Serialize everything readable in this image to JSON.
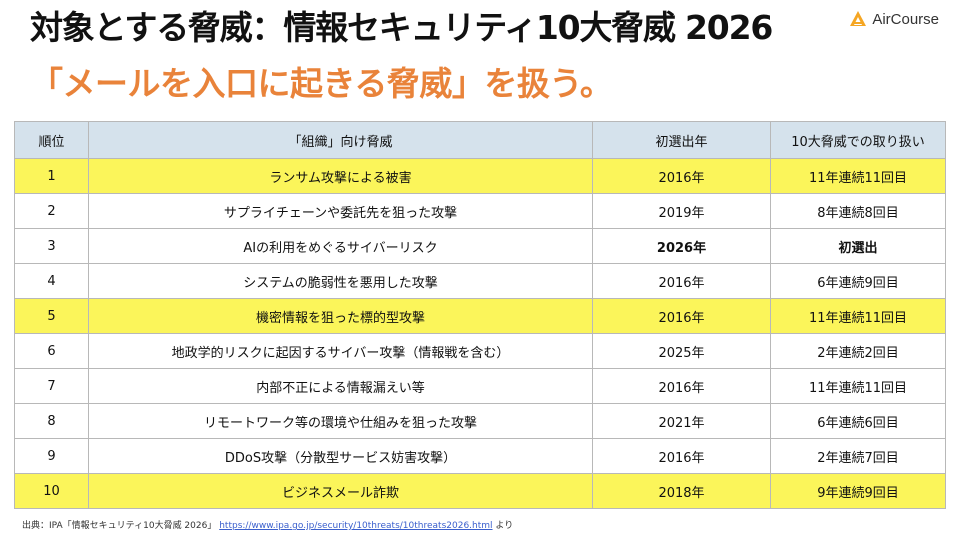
{
  "slide": {
    "title": "対象とする脅威：情報セキュリティ10大脅威 2026",
    "subtitle": "「メールを入口に起きる脅威」を扱う。",
    "logo_text": "AirCourse",
    "brand_color": "#f5a623",
    "accent_color": "#e9833a",
    "highlight_color": "#fbf55a",
    "header_color": "#d5e2ec"
  },
  "table": {
    "headers": [
      "順位",
      "「組織」向け脅威",
      "初選出年",
      "10大脅威での取り扱い"
    ],
    "rows": [
      {
        "rank": "1",
        "threat": "ランサム攻撃による被害",
        "year": "2016年",
        "handling": "11年連続11回目",
        "highlight": true
      },
      {
        "rank": "2",
        "threat": "サプライチェーンや委託先を狙った攻撃",
        "year": "2019年",
        "handling": "8年連続8回目",
        "highlight": false
      },
      {
        "rank": "3",
        "threat": "AIの利用をめぐるサイバーリスク",
        "year": "2026年",
        "handling": "初選出",
        "highlight": false
      },
      {
        "rank": "4",
        "threat": "システムの脆弱性を悪用した攻撃",
        "year": "2016年",
        "handling": "6年連続9回目",
        "highlight": false
      },
      {
        "rank": "5",
        "threat": "機密情報を狙った標的型攻撃",
        "year": "2016年",
        "handling": "11年連続11回目",
        "highlight": true
      },
      {
        "rank": "6",
        "threat": "地政学的リスクに起因するサイバー攻撃（情報戦を含む）",
        "year": "2025年",
        "handling": "2年連続2回目",
        "highlight": false
      },
      {
        "rank": "7",
        "threat": "内部不正による情報漏えい等",
        "year": "2016年",
        "handling": "11年連続11回目",
        "highlight": false
      },
      {
        "rank": "8",
        "threat": "リモートワーク等の環境や仕組みを狙った攻撃",
        "year": "2021年",
        "handling": "6年連続6回目",
        "highlight": false
      },
      {
        "rank": "9",
        "threat": "DDoS攻撃（分散型サービス妨害攻撃）",
        "year": "2016年",
        "handling": "2年連続7回目",
        "highlight": false
      },
      {
        "rank": "10",
        "threat": "ビジネスメール詐欺",
        "year": "2018年",
        "handling": "9年連続9回目",
        "highlight": true
      }
    ]
  },
  "footer": {
    "source_prefix": "出典：IPA「情報セキュリティ10大脅威 2026」",
    "url": "https://www.ipa.go.jp/security/10threats/10threats2026.html",
    "suffix": "より"
  }
}
